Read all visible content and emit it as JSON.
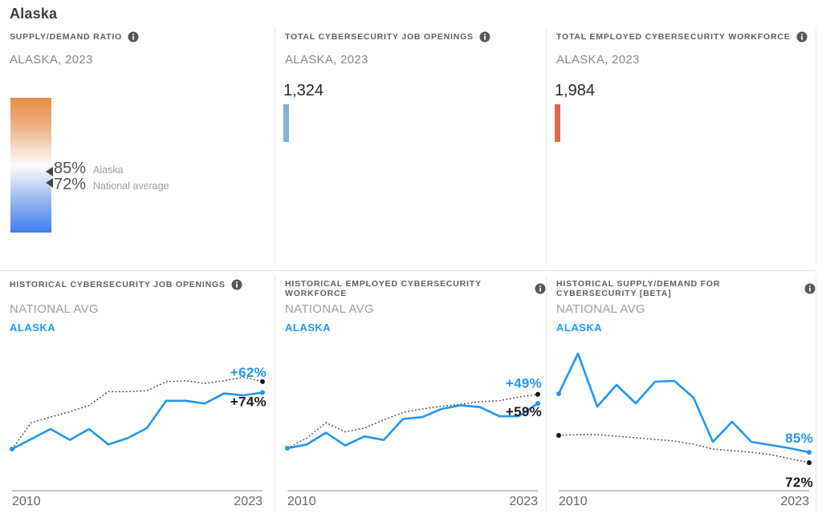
{
  "page": {
    "title": "Alaska"
  },
  "colors": {
    "state_blue": "#2196f3",
    "national_line": "#3f3f3f",
    "openings_bar": "#7fb2d9",
    "workforce_bar": "#e0694b",
    "gradient_top_orange": "#e78c42",
    "gradient_bottom_blue": "#3f7ef2"
  },
  "panels": {
    "supply_demand": {
      "header": "SUPPLY/DEMAND RATIO",
      "subtitle": "ALASKA, 2023",
      "state_value": "85%",
      "state_label": "Alaska",
      "national_value": "72%",
      "national_label": "National average"
    },
    "job_openings": {
      "header": "TOTAL CYBERSECURITY JOB OPENINGS",
      "subtitle": "ALASKA, 2023",
      "value": "1,324"
    },
    "workforce": {
      "header": "TOTAL EMPLOYED CYBERSECURITY WORKFORCE",
      "subtitle": "ALASKA, 2023",
      "value": "1,984"
    }
  },
  "history_panels": [
    {
      "header": "HISTORICAL CYBERSECURITY JOB OPENINGS",
      "legend_national": "NATIONAL AVG",
      "legend_state": "ALASKA"
    },
    {
      "header": "HISTORICAL EMPLOYED CYBERSECURITY WORKFORCE",
      "legend_national": "NATIONAL AVG",
      "legend_state": "ALASKA"
    },
    {
      "header": "HISTORICAL SUPPLY/DEMAND FOR CYBERSECURITY [BETA]",
      "legend_national": "NATIONAL AVG",
      "legend_state": "ALASKA"
    }
  ],
  "chart_data": [
    {
      "type": "line",
      "title": "HISTORICAL CYBERSECURITY JOB OPENINGS",
      "x": [
        2010,
        2011,
        2012,
        2013,
        2014,
        2015,
        2016,
        2017,
        2018,
        2019,
        2020,
        2021,
        2022,
        2023
      ],
      "x_start_label": "2010",
      "x_end_label": "2023",
      "ylim": [
        0,
        110
      ],
      "grid": false,
      "legend_position": "top-left",
      "series": [
        {
          "name": "NATIONAL AVG",
          "style": "dotted",
          "color": "#3f3f3f",
          "label_color": "#1c1c1e",
          "end_label": "+74%",
          "values": [
            0,
            29,
            35,
            41,
            48,
            63,
            63,
            64,
            74,
            75,
            72,
            75,
            79,
            74
          ]
        },
        {
          "name": "ALASKA",
          "style": "solid",
          "color": "#2196f3",
          "label_color": "#2196f3",
          "end_label": "+62%",
          "values": [
            0,
            11,
            22,
            10,
            22,
            5,
            12,
            23,
            53,
            53,
            50,
            61,
            59,
            62
          ]
        }
      ]
    },
    {
      "type": "line",
      "title": "HISTORICAL EMPLOYED CYBERSECURITY WORKFORCE",
      "x": [
        2010,
        2011,
        2012,
        2013,
        2014,
        2015,
        2016,
        2017,
        2018,
        2019,
        2020,
        2021,
        2022,
        2023
      ],
      "x_start_label": "2010",
      "x_end_label": "2023",
      "ylim": [
        0,
        100
      ],
      "grid": false,
      "legend_position": "top-left",
      "series": [
        {
          "name": "NATIONAL AVG",
          "style": "dotted",
          "color": "#3f3f3f",
          "label_color": "#1c1c1e",
          "end_label": "+59%",
          "values": [
            0,
            11,
            28,
            18,
            22,
            31,
            39,
            43,
            46,
            48,
            51,
            52,
            56,
            59
          ]
        },
        {
          "name": "ALASKA",
          "style": "solid",
          "color": "#2196f3",
          "label_color": "#2196f3",
          "end_label": "+49%",
          "values": [
            0,
            4,
            17,
            3,
            13,
            9,
            32,
            34,
            43,
            47,
            45,
            35,
            35,
            49
          ]
        }
      ]
    },
    {
      "type": "line",
      "title": "HISTORICAL SUPPLY/DEMAND FOR CYBERSECURITY [BETA]",
      "x": [
        2010,
        2011,
        2012,
        2013,
        2014,
        2015,
        2016,
        2017,
        2018,
        2019,
        2020,
        2021,
        2022,
        2023
      ],
      "x_start_label": "2010",
      "x_end_label": "2023",
      "ylim": [
        60,
        215
      ],
      "grid": false,
      "legend_position": "top-left",
      "series": [
        {
          "name": "NATIONAL AVG",
          "style": "dotted",
          "color": "#3f3f3f",
          "label_color": "#1c1c1e",
          "end_label": "72%",
          "values": [
            106,
            107,
            107,
            105,
            103,
            101,
            99,
            95,
            89,
            87,
            85,
            82,
            77,
            72
          ]
        },
        {
          "name": "ALASKA",
          "style": "solid",
          "color": "#2196f3",
          "label_color": "#2196f3",
          "end_label": "85%",
          "values": [
            158,
            208,
            142,
            169,
            146,
            173,
            174,
            153,
            98,
            123,
            98,
            94,
            90,
            85
          ]
        }
      ]
    }
  ]
}
